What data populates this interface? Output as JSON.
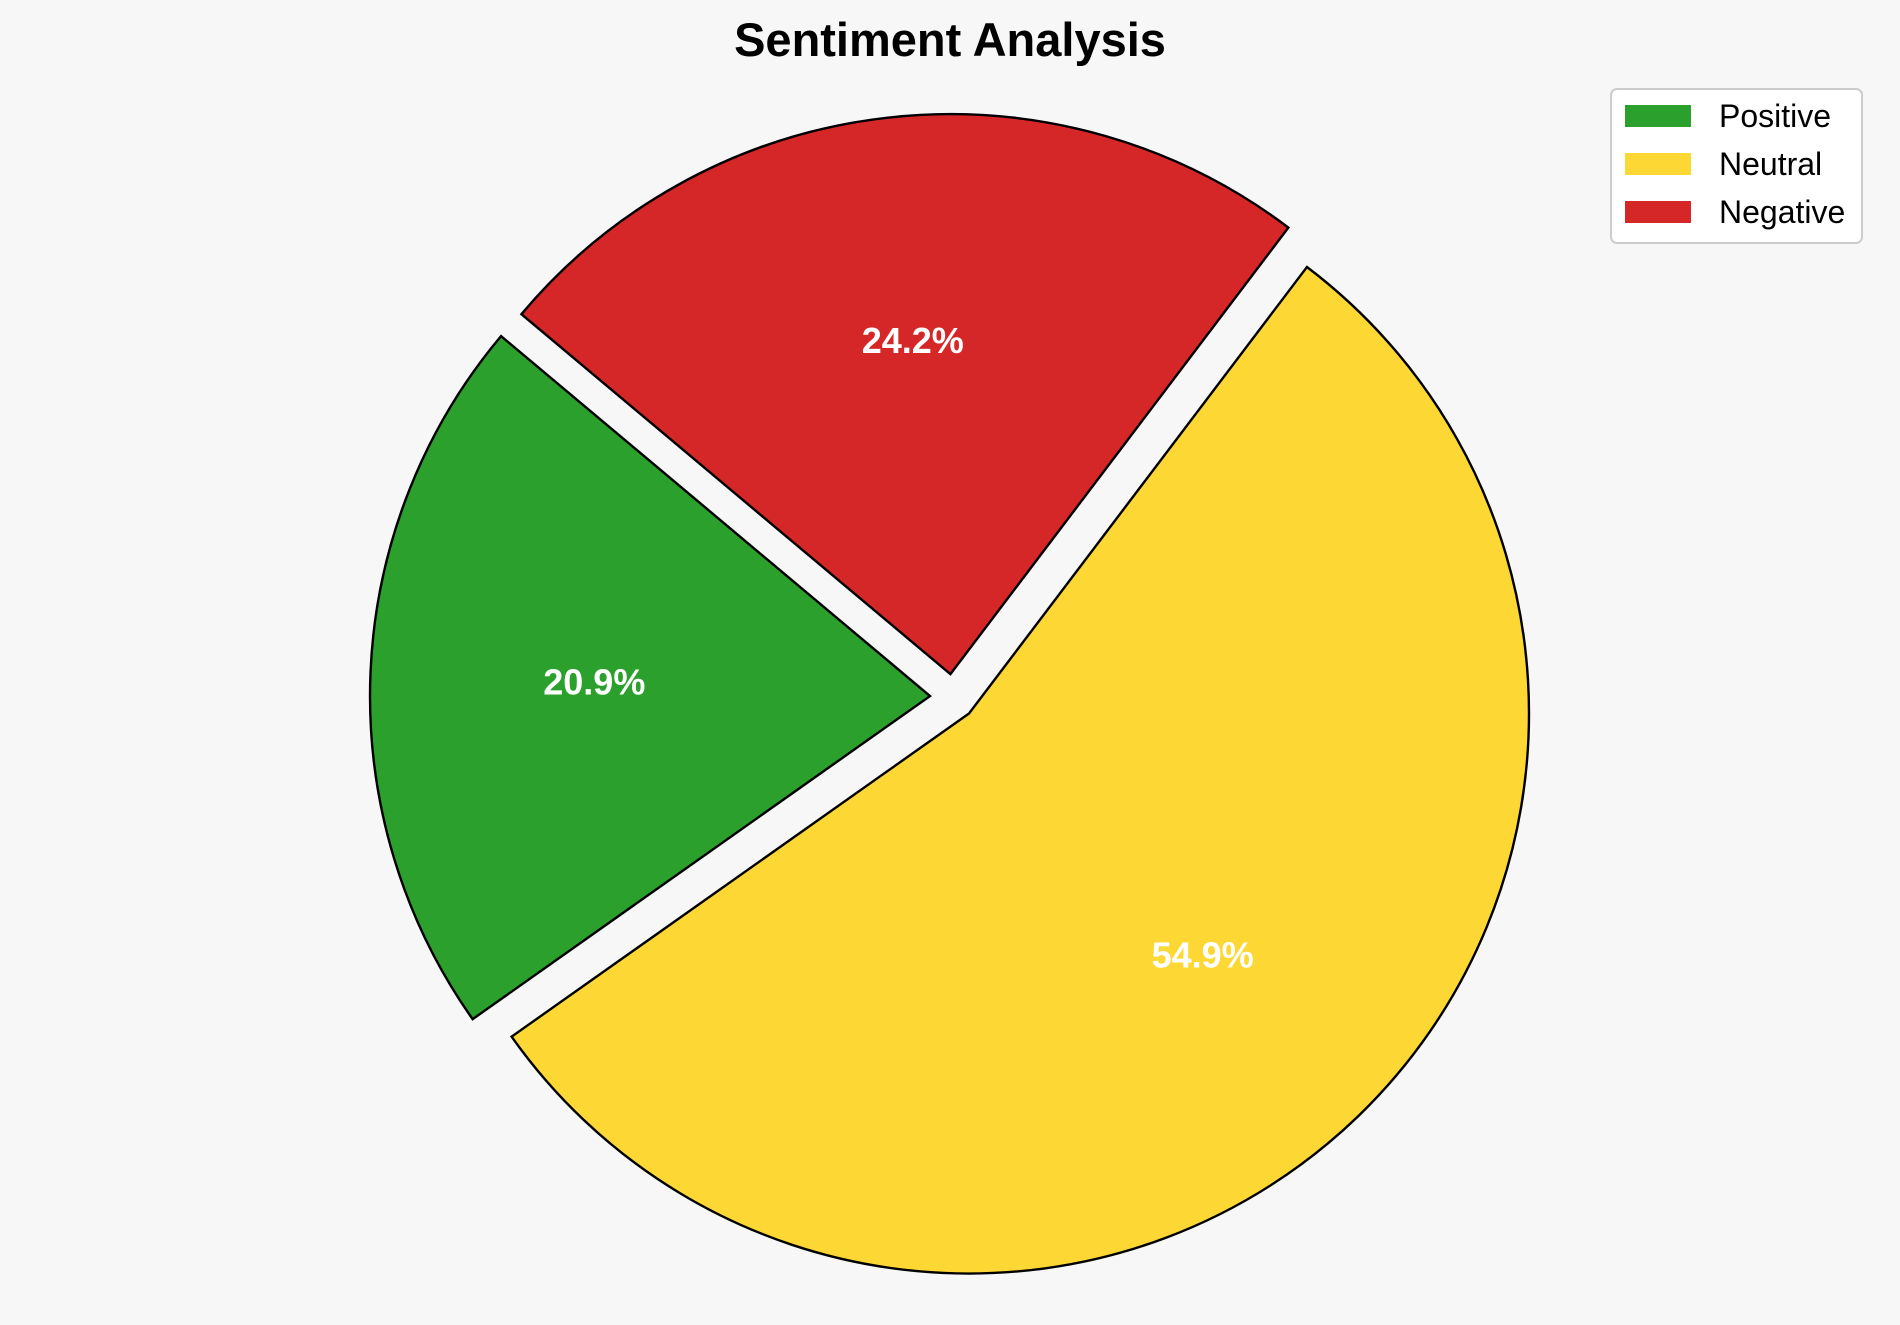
{
  "chart_data": {
    "type": "pie",
    "title": "Sentiment Analysis",
    "categories": [
      "Positive",
      "Neutral",
      "Negative"
    ],
    "values": [
      20.9,
      54.9,
      24.2
    ],
    "labels": [
      "20.9%",
      "54.9%",
      "24.2%"
    ],
    "colors": [
      "#2ca02c",
      "#fdd835",
      "#d62728"
    ],
    "edge_color": "#000000",
    "exploded": true,
    "legend": {
      "position": "top-right",
      "entries": [
        "Positive",
        "Neutral",
        "Negative"
      ]
    }
  }
}
